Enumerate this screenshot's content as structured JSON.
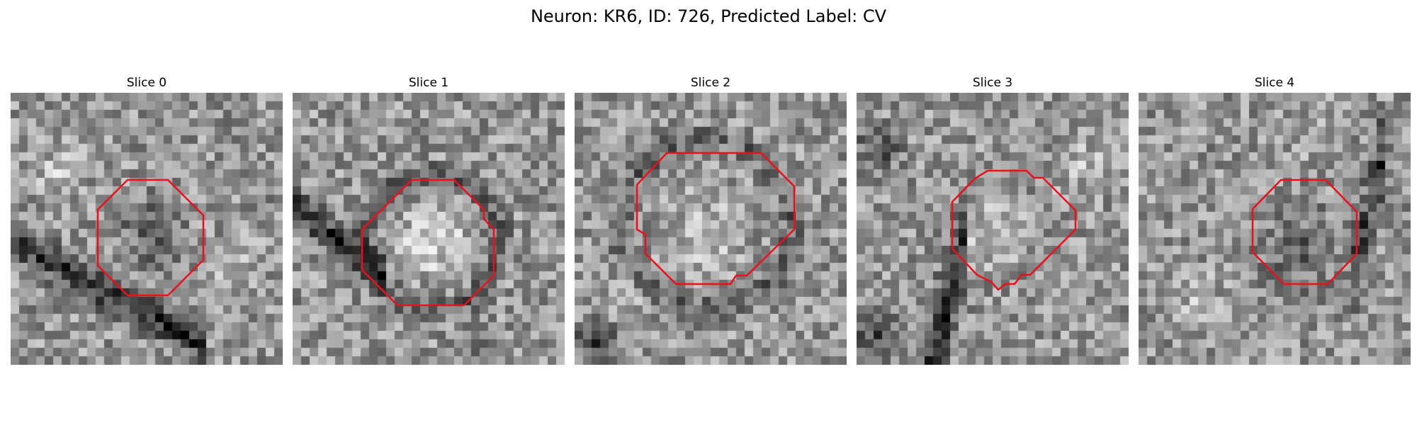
{
  "figure": {
    "title": "Neuron: KR6, ID: 726, Predicted Label: CV"
  },
  "contour_color": "#e8121c",
  "panels": [
    {
      "title": "Slice 0",
      "image": "grayscale-microscopy-patch",
      "overlay": "red-roi-contour"
    },
    {
      "title": "Slice 1",
      "image": "grayscale-microscopy-patch",
      "overlay": "red-roi-contour"
    },
    {
      "title": "Slice 2",
      "image": "grayscale-microscopy-patch",
      "overlay": "red-roi-contour"
    },
    {
      "title": "Slice 3",
      "image": "grayscale-microscopy-patch",
      "overlay": "red-roi-contour"
    },
    {
      "title": "Slice 4",
      "image": "grayscale-microscopy-patch",
      "overlay": "red-roi-contour"
    }
  ]
}
